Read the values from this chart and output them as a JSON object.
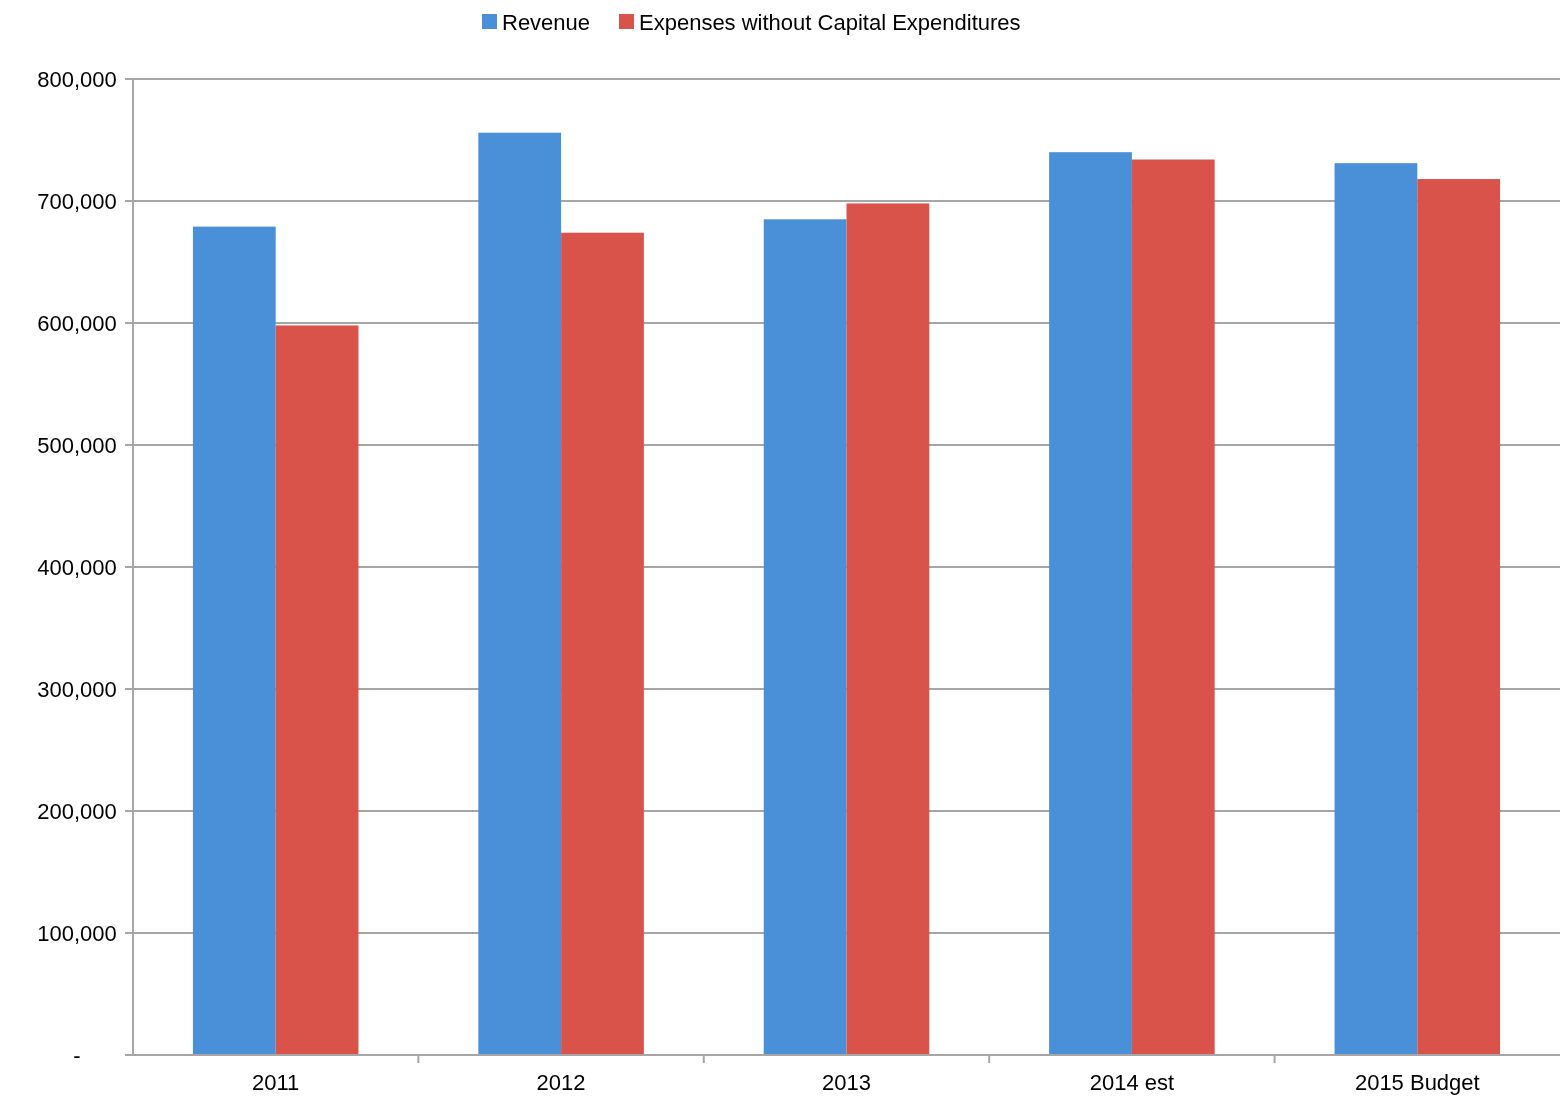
{
  "chart_data": {
    "type": "bar",
    "categories": [
      "2011",
      "2012",
      "2013",
      "2014 est",
      "2015 Budget"
    ],
    "series": [
      {
        "name": "Revenue",
        "color": "#4a90d9",
        "values": [
          679000,
          756000,
          685000,
          740000,
          731000
        ]
      },
      {
        "name": "Expenses without Capital Expenditures",
        "color": "#d9534a",
        "values": [
          598000,
          674000,
          698000,
          734000,
          718000
        ]
      }
    ],
    "ylim": [
      0,
      800000
    ],
    "yticks": [
      {
        "value": 0,
        "label": "-"
      },
      {
        "value": 100000,
        "label": "100,000"
      },
      {
        "value": 200000,
        "label": "200,000"
      },
      {
        "value": 300000,
        "label": "300,000"
      },
      {
        "value": 400000,
        "label": "400,000"
      },
      {
        "value": 500000,
        "label": "500,000"
      },
      {
        "value": 600000,
        "label": "600,000"
      },
      {
        "value": 700000,
        "label": "700,000"
      },
      {
        "value": 800000,
        "label": "800,000"
      }
    ],
    "grid": "y",
    "legend": "top"
  }
}
